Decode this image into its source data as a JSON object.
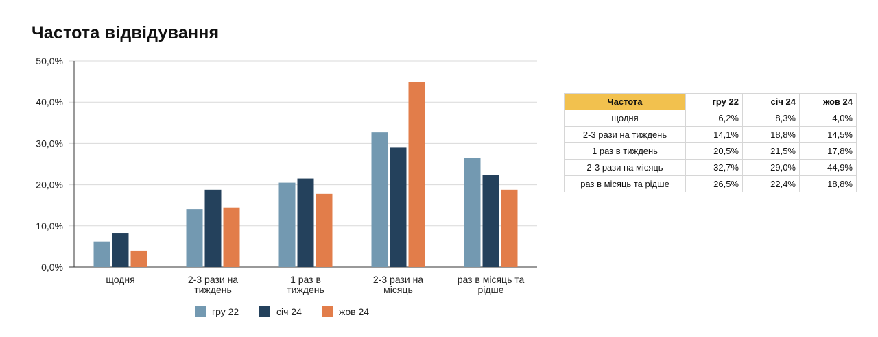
{
  "title": "Частота відвідування",
  "chart_data": {
    "type": "bar",
    "title": "Частота відвідування",
    "categories": [
      [
        "щодня"
      ],
      [
        "2-3 рази на",
        "тиждень"
      ],
      [
        "1 раз в",
        "тиждень"
      ],
      [
        "2-3 рази на",
        "місяць"
      ],
      [
        "раз в місяць та",
        "рідше"
      ]
    ],
    "series": [
      {
        "name": "гру 22",
        "color": "#7399b1",
        "values": [
          6.2,
          14.1,
          20.5,
          32.7,
          26.5
        ]
      },
      {
        "name": "січ 24",
        "color": "#24415c",
        "values": [
          8.3,
          18.8,
          21.5,
          29.0,
          22.4
        ]
      },
      {
        "name": "жов 24",
        "color": "#e27d4a",
        "values": [
          4.0,
          14.5,
          17.8,
          44.9,
          18.8
        ]
      }
    ],
    "ylim": [
      0,
      50
    ],
    "yticks": [
      "0,0%",
      "10,0%",
      "20,0%",
      "30,0%",
      "40,0%",
      "50,0%"
    ],
    "grid": true,
    "legend": "bottom"
  },
  "table": {
    "headers": [
      "Частота",
      "гру 22",
      "січ 24",
      "жов 24"
    ],
    "rows": [
      {
        "label": "щодня",
        "values": [
          "6,2%",
          "8,3%",
          "4,0%"
        ]
      },
      {
        "label": "2-3 рази на тиждень",
        "values": [
          "14,1%",
          "18,8%",
          "14,5%"
        ]
      },
      {
        "label": "1 раз в тиждень",
        "values": [
          "20,5%",
          "21,5%",
          "17,8%"
        ]
      },
      {
        "label": "2-3 рази на місяць",
        "values": [
          "32,7%",
          "29,0%",
          "44,9%"
        ]
      },
      {
        "label": "раз в місяць та рідше",
        "values": [
          "26,5%",
          "22,4%",
          "18,8%"
        ]
      }
    ]
  }
}
